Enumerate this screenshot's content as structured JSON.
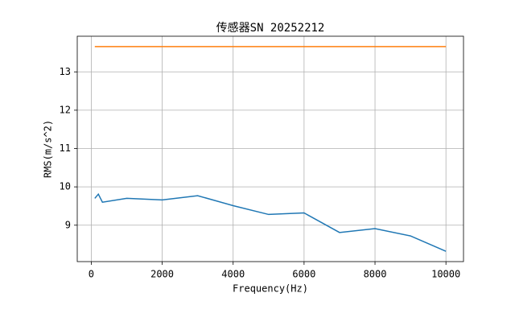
{
  "chart_data": {
    "type": "line",
    "title": "传感器SN 20252212",
    "x_label": "Frequency(Hz)",
    "y_label": "RMS(m/s^2)",
    "x": [
      100,
      200,
      315,
      1000,
      2000,
      3000,
      4000,
      5000,
      6000,
      7000,
      8000,
      9000,
      10000
    ],
    "series": [
      {
        "color": "#1f77b4",
        "values": [
          9.7,
          9.81,
          9.6,
          9.7,
          9.66,
          9.77,
          9.51,
          9.28,
          9.32,
          8.81,
          8.91,
          8.72,
          8.32
        ]
      },
      {
        "color": "#ff7f0e",
        "values": [
          13.66,
          13.66,
          13.66,
          13.66,
          13.66,
          13.66,
          13.66,
          13.66,
          13.66,
          13.66,
          13.66,
          13.66,
          13.66
        ]
      }
    ],
    "xlim": [
      -395,
      10495
    ],
    "ylim": [
      8.05,
      13.93
    ],
    "xticks": [
      0,
      2000,
      4000,
      6000,
      8000,
      10000
    ],
    "yticks": [
      9,
      10,
      11,
      12,
      13
    ],
    "grid": true
  }
}
